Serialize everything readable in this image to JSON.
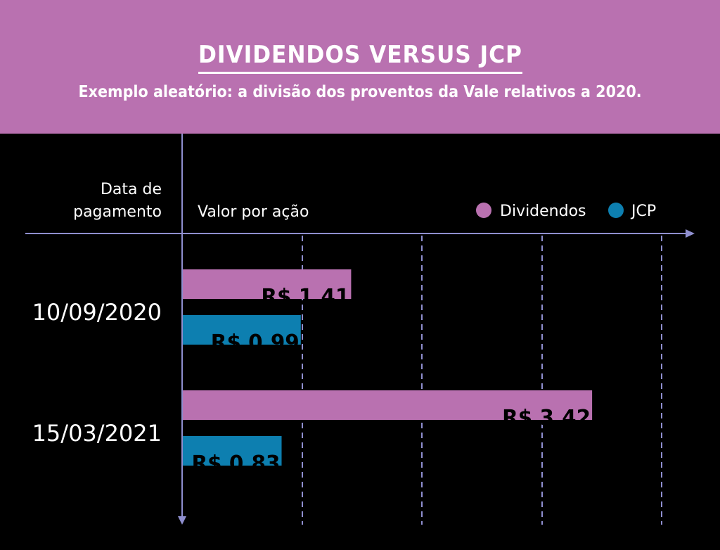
{
  "header": {
    "title": "DIVIDENDOS VERSUS JCP",
    "subtitle": "Exemplo aleatório: a divisão dos proventos da Vale relativos a 2020."
  },
  "colors": {
    "header_bg": "#b971b0",
    "dividendos": "#b971b0",
    "jcp": "#0d7fb0",
    "axis": "#8f8fcf"
  },
  "chart_data": {
    "type": "bar",
    "orientation": "horizontal",
    "title": "DIVIDENDOS VERSUS JCP",
    "subtitle": "Exemplo aleatório: a divisão dos proventos da Vale relativos a 2020.",
    "ylabel_line1": "Data de",
    "ylabel_line2": "pagamento",
    "xlabel": "Valor por ação",
    "categories": [
      "10/09/2020",
      "15/03/2021"
    ],
    "series": [
      {
        "name": "Dividendos",
        "values": [
          1.41,
          3.42
        ],
        "labels": [
          "R$ 1.41",
          "R$ 3.42"
        ],
        "color": "#b971b0"
      },
      {
        "name": "JCP",
        "values": [
          0.99,
          0.83
        ],
        "labels": [
          "R$ 0.99",
          "R$ 0.83"
        ],
        "color": "#0d7fb0"
      }
    ],
    "xlim": [
      0,
      4
    ],
    "gridlines": [
      1,
      2,
      3,
      4
    ],
    "grid": "dashed vertical",
    "legend_position": "top-right"
  }
}
